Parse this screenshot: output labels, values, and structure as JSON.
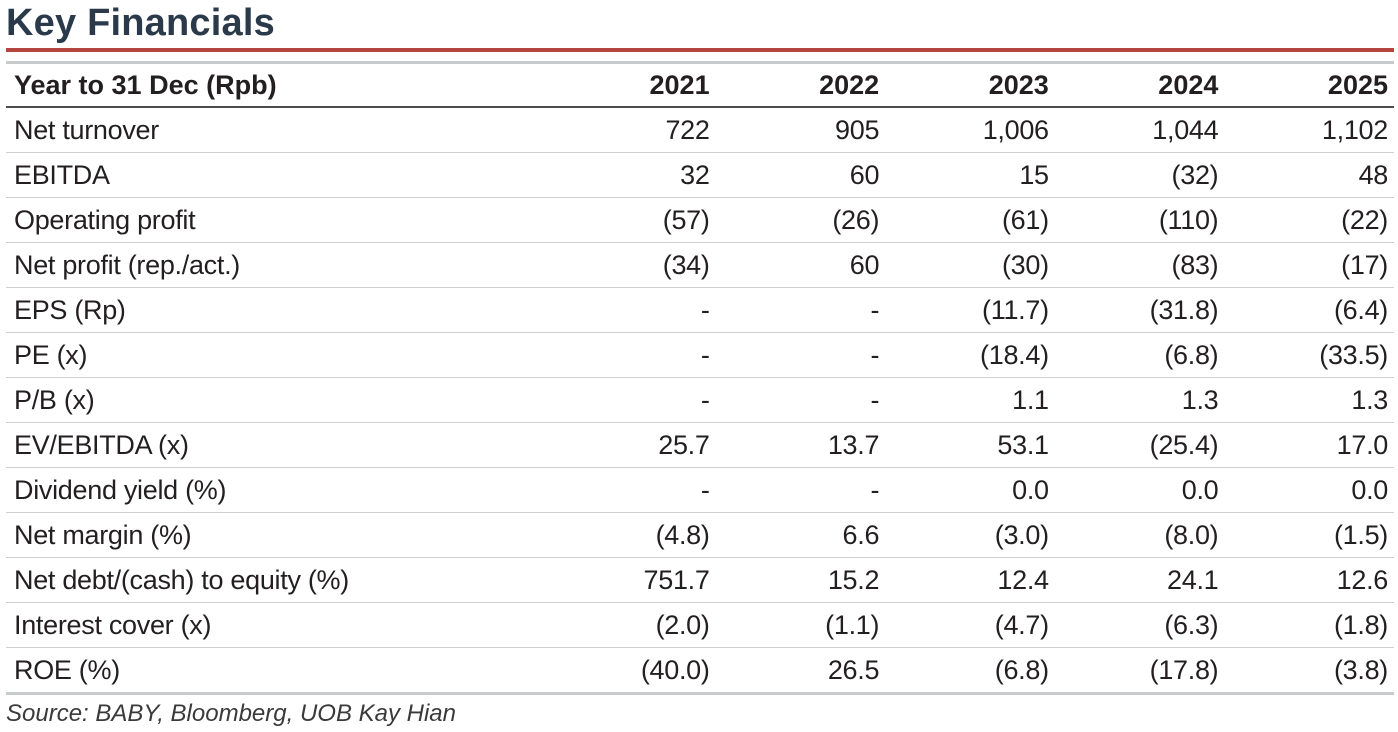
{
  "title": "Key Financials",
  "table": {
    "header": {
      "label": "Year to 31 Dec (Rpb)",
      "years": [
        "2021",
        "2022",
        "2023",
        "2024",
        "2025"
      ]
    },
    "rows": [
      {
        "label": "Net turnover",
        "values": [
          "722",
          "905",
          "1,006",
          "1,044",
          "1,102"
        ]
      },
      {
        "label": "EBITDA",
        "values": [
          "32",
          "60",
          "15",
          "(32)",
          "48"
        ]
      },
      {
        "label": "Operating profit",
        "values": [
          "(57)",
          "(26)",
          "(61)",
          "(110)",
          "(22)"
        ]
      },
      {
        "label": "Net profit (rep./act.)",
        "values": [
          "(34)",
          "60",
          "(30)",
          "(83)",
          "(17)"
        ]
      },
      {
        "label": "EPS (Rp)",
        "values": [
          "-",
          "-",
          "(11.7)",
          "(31.8)",
          "(6.4)"
        ]
      },
      {
        "label": "PE (x)",
        "values": [
          "-",
          "-",
          "(18.4)",
          "(6.8)",
          "(33.5)"
        ]
      },
      {
        "label": "P/B (x)",
        "values": [
          "-",
          "-",
          "1.1",
          "1.3",
          "1.3"
        ]
      },
      {
        "label": "EV/EBITDA (x)",
        "values": [
          "25.7",
          "13.7",
          "53.1",
          "(25.4)",
          "17.0"
        ]
      },
      {
        "label": "Dividend yield (%)",
        "values": [
          "-",
          "-",
          "0.0",
          "0.0",
          "0.0"
        ]
      },
      {
        "label": "Net margin (%)",
        "values": [
          "(4.8)",
          "6.6",
          "(3.0)",
          "(8.0)",
          "(1.5)"
        ]
      },
      {
        "label": "Net debt/(cash) to equity (%)",
        "values": [
          "751.7",
          "15.2",
          "12.4",
          "24.1",
          "12.6"
        ]
      },
      {
        "label": "Interest cover (x)",
        "values": [
          "(2.0)",
          "(1.1)",
          "(4.7)",
          "(6.3)",
          "(1.8)"
        ]
      },
      {
        "label": "ROE (%)",
        "values": [
          "(40.0)",
          "26.5",
          "(6.8)",
          "(17.8)",
          "(3.8)"
        ]
      }
    ]
  },
  "source": "Source: BABY, Bloomberg, UOB Kay Hian",
  "colors": {
    "title": "#2b3a4a",
    "accent_rule": "#b5453e",
    "row_divider": "#cfd0d2"
  }
}
